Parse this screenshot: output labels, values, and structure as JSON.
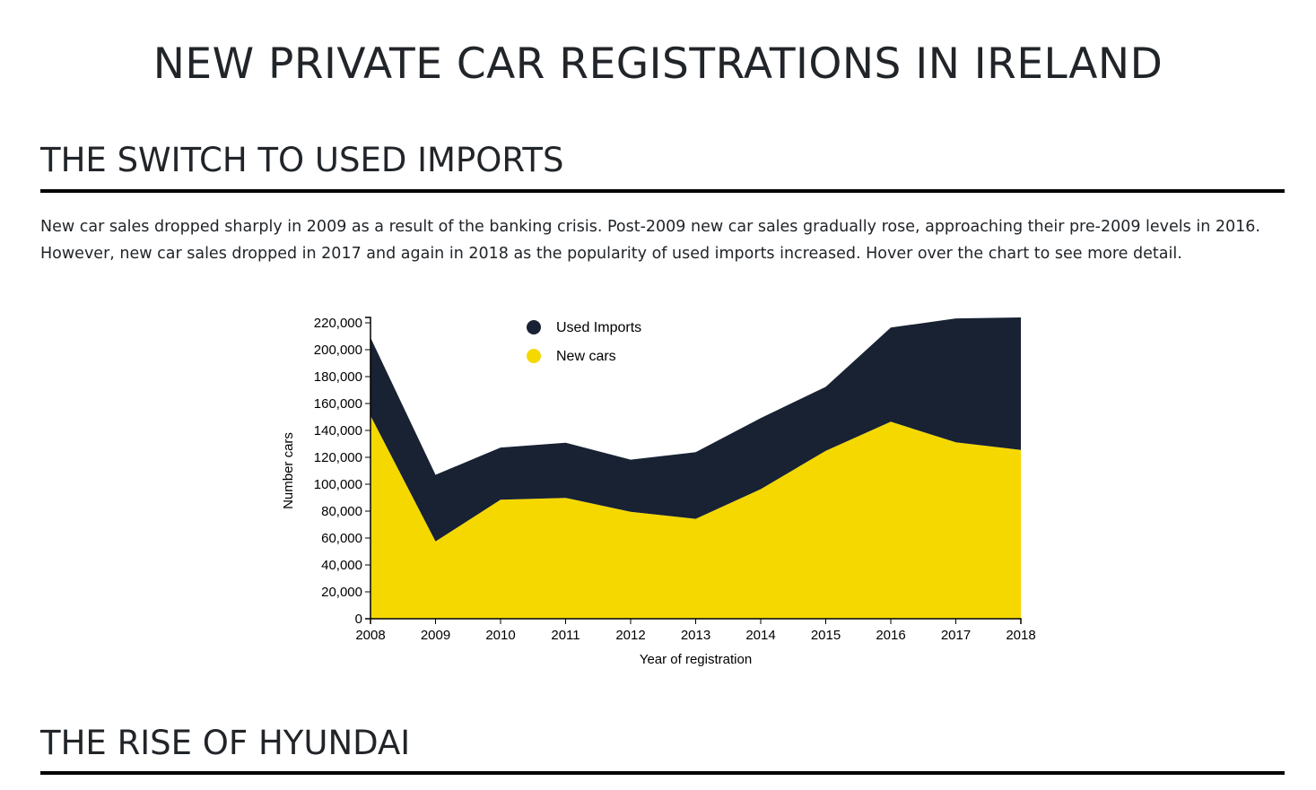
{
  "page": {
    "title": "NEW PRIVATE CAR REGISTRATIONS IN IRELAND",
    "section1_heading": "THE SWITCH TO USED IMPORTS",
    "intro_line1": "New car sales dropped sharply in 2009 as a result of the banking crisis. Post-2009 new car sales gradually rose, approaching their pre-2009 levels in 2016.",
    "intro_line2": "However, new car sales dropped in 2017 and again in 2018 as the popularity of used imports increased. Hover over the chart to see more detail.",
    "section2_heading": "THE RISE OF HYUNDAI"
  },
  "chart_data": {
    "type": "area",
    "stacked": true,
    "xlabel": "Year of registration",
    "ylabel": "Number cars",
    "x": [
      2008,
      2009,
      2010,
      2011,
      2012,
      2013,
      2014,
      2015,
      2016,
      2017,
      2018
    ],
    "ylim": [
      0,
      220000
    ],
    "yticks": [
      0,
      20000,
      40000,
      60000,
      80000,
      100000,
      120000,
      140000,
      160000,
      180000,
      200000,
      220000
    ],
    "legend_position": "top-left",
    "series": [
      {
        "name": "New cars",
        "color": "#f5d800",
        "values": [
          151000,
          57500,
          88500,
          89900,
          79500,
          74300,
          96300,
          124900,
          146500,
          131200,
          125500
        ]
      },
      {
        "name": "Used Imports",
        "color": "#182233",
        "values": [
          58000,
          49500,
          38800,
          41000,
          38800,
          49500,
          52900,
          47500,
          70000,
          92100,
          98500
        ]
      }
    ],
    "legend_order": [
      "Used Imports",
      "New cars"
    ]
  }
}
